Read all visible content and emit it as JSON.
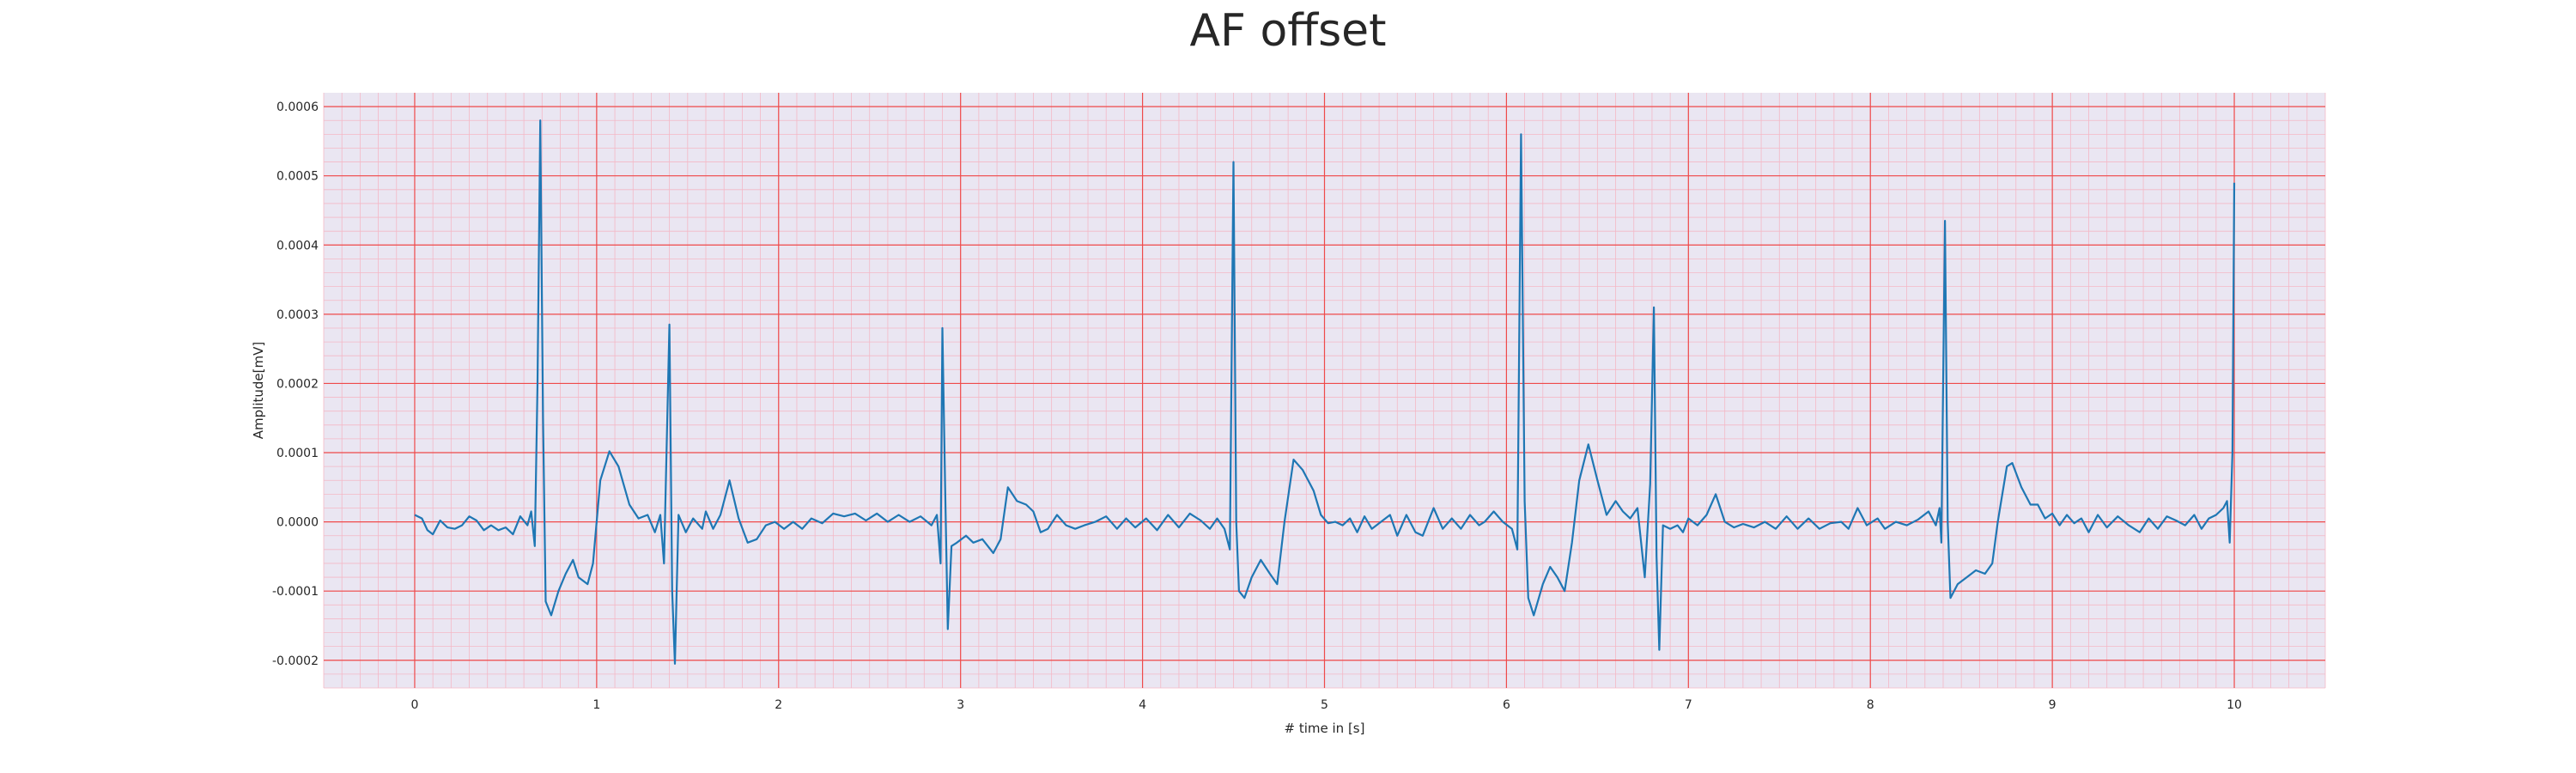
{
  "chart_data": {
    "type": "line",
    "title": "AF offset",
    "xlabel": "# time in [s]",
    "ylabel": "Amplitude[mV]",
    "xlim": [
      -0.5,
      10.5
    ],
    "ylim": [
      -0.00024,
      0.00062
    ],
    "x_ticks": [
      0,
      1,
      2,
      3,
      4,
      5,
      6,
      7,
      8,
      9,
      10
    ],
    "x_tick_labels": [
      "0",
      "1",
      "2",
      "3",
      "4",
      "5",
      "6",
      "7",
      "8",
      "9",
      "10"
    ],
    "y_ticks": [
      -0.0002,
      -0.0001,
      0.0,
      0.0001,
      0.0002,
      0.0003,
      0.0004,
      0.0005,
      0.0006
    ],
    "y_tick_labels": [
      "-0.0002",
      "-0.0001",
      "0.0000",
      "0.0001",
      "0.0002",
      "0.0003",
      "0.0004",
      "0.0005",
      "0.0006"
    ],
    "grid": true,
    "grid_style": "ecg paper (major red, minor pink)",
    "colors": {
      "line": "#1f77b4",
      "background": "#eae6f2",
      "major_grid": "#ef4a4a",
      "minor_grid": "#f4b8c6"
    },
    "series": [
      {
        "points": [
          [
            0.0,
            1e-05
          ],
          [
            0.04,
            5e-06
          ],
          [
            0.07,
            -1.2e-05
          ],
          [
            0.1,
            -1.8e-05
          ],
          [
            0.14,
            2e-06
          ],
          [
            0.18,
            -8e-06
          ],
          [
            0.22,
            -1e-05
          ],
          [
            0.26,
            -5e-06
          ],
          [
            0.3,
            8e-06
          ],
          [
            0.34,
            2e-06
          ],
          [
            0.38,
            -1.2e-05
          ],
          [
            0.42,
            -5e-06
          ],
          [
            0.46,
            -1.2e-05
          ],
          [
            0.5,
            -8e-06
          ],
          [
            0.54,
            -1.8e-05
          ],
          [
            0.58,
            8e-06
          ],
          [
            0.62,
            -5e-06
          ],
          [
            0.64,
            1.5e-05
          ],
          [
            0.66,
            -3.5e-05
          ],
          [
            0.675,
            0.0002
          ],
          [
            0.69,
            0.00058
          ],
          [
            0.705,
            0.00015
          ],
          [
            0.72,
            -0.000115
          ],
          [
            0.75,
            -0.000135
          ],
          [
            0.79,
            -0.0001
          ],
          [
            0.83,
            -7.5e-05
          ],
          [
            0.87,
            -5.5e-05
          ],
          [
            0.9,
            -8e-05
          ],
          [
            0.95,
            -9e-05
          ],
          [
            0.98,
            -6e-05
          ],
          [
            1.02,
            6e-05
          ],
          [
            1.07,
            0.000102
          ],
          [
            1.12,
            8e-05
          ],
          [
            1.18,
            2.5e-05
          ],
          [
            1.23,
            5e-06
          ],
          [
            1.28,
            1e-05
          ],
          [
            1.32,
            -1.5e-05
          ],
          [
            1.35,
            1e-05
          ],
          [
            1.37,
            -6e-05
          ],
          [
            1.4,
            0.000285
          ],
          [
            1.415,
            -0.0001
          ],
          [
            1.43,
            -0.000205
          ],
          [
            1.45,
            1e-05
          ],
          [
            1.49,
            -1.5e-05
          ],
          [
            1.53,
            5e-06
          ],
          [
            1.58,
            -1e-05
          ],
          [
            1.6,
            1.5e-05
          ],
          [
            1.64,
            -1e-05
          ],
          [
            1.68,
            1e-05
          ],
          [
            1.73,
            6e-05
          ],
          [
            1.78,
            5e-06
          ],
          [
            1.83,
            -3e-05
          ],
          [
            1.88,
            -2.5e-05
          ],
          [
            1.93,
            -5e-06
          ],
          [
            1.98,
            0.0
          ],
          [
            2.03,
            -1e-05
          ],
          [
            2.08,
            0.0
          ],
          [
            2.13,
            -1e-05
          ],
          [
            2.18,
            5e-06
          ],
          [
            2.24,
            -2e-06
          ],
          [
            2.3,
            1.2e-05
          ],
          [
            2.36,
            8e-06
          ],
          [
            2.42,
            1.2e-05
          ],
          [
            2.48,
            2e-06
          ],
          [
            2.54,
            1.2e-05
          ],
          [
            2.6,
            0.0
          ],
          [
            2.66,
            1e-05
          ],
          [
            2.72,
            0.0
          ],
          [
            2.78,
            8e-06
          ],
          [
            2.84,
            -5e-06
          ],
          [
            2.87,
            1e-05
          ],
          [
            2.89,
            -6e-05
          ],
          [
            2.9,
            0.00028
          ],
          [
            2.915,
            5e-05
          ],
          [
            2.93,
            -0.000155
          ],
          [
            2.95,
            -3.5e-05
          ],
          [
            2.98,
            -3e-05
          ],
          [
            3.03,
            -2e-05
          ],
          [
            3.07,
            -3e-05
          ],
          [
            3.12,
            -2.5e-05
          ],
          [
            3.18,
            -4.5e-05
          ],
          [
            3.22,
            -2.5e-05
          ],
          [
            3.26,
            5e-05
          ],
          [
            3.31,
            3e-05
          ],
          [
            3.36,
            2.5e-05
          ],
          [
            3.4,
            1.5e-05
          ],
          [
            3.44,
            -1.5e-05
          ],
          [
            3.48,
            -1e-05
          ],
          [
            3.53,
            1e-05
          ],
          [
            3.58,
            -5e-06
          ],
          [
            3.63,
            -1e-05
          ],
          [
            3.68,
            -5e-06
          ],
          [
            3.74,
            0.0
          ],
          [
            3.8,
            8e-06
          ],
          [
            3.86,
            -1e-05
          ],
          [
            3.91,
            5e-06
          ],
          [
            3.96,
            -8e-06
          ],
          [
            4.02,
            5e-06
          ],
          [
            4.08,
            -1.2e-05
          ],
          [
            4.14,
            1e-05
          ],
          [
            4.2,
            -8e-06
          ],
          [
            4.26,
            1.2e-05
          ],
          [
            4.32,
            2e-06
          ],
          [
            4.37,
            -1e-05
          ],
          [
            4.41,
            5e-06
          ],
          [
            4.45,
            -1e-05
          ],
          [
            4.48,
            -4e-05
          ],
          [
            4.5,
            0.00052
          ],
          [
            4.515,
            0.0
          ],
          [
            4.53,
            -0.0001
          ],
          [
            4.56,
            -0.00011
          ],
          [
            4.6,
            -8e-05
          ],
          [
            4.65,
            -5.5e-05
          ],
          [
            4.7,
            -7.5e-05
          ],
          [
            4.74,
            -9e-05
          ],
          [
            4.78,
            0.0
          ],
          [
            4.83,
            9e-05
          ],
          [
            4.88,
            7.5e-05
          ],
          [
            4.94,
            4.5e-05
          ],
          [
            4.98,
            1e-05
          ],
          [
            5.02,
            -2e-06
          ],
          [
            5.06,
            0.0
          ],
          [
            5.1,
            -5e-06
          ],
          [
            5.14,
            5e-06
          ],
          [
            5.18,
            -1.5e-05
          ],
          [
            5.22,
            8e-06
          ],
          [
            5.26,
            -1e-05
          ],
          [
            5.31,
            0.0
          ],
          [
            5.36,
            1e-05
          ],
          [
            5.4,
            -2e-05
          ],
          [
            5.45,
            1e-05
          ],
          [
            5.5,
            -1.5e-05
          ],
          [
            5.54,
            -2e-05
          ],
          [
            5.6,
            2e-05
          ],
          [
            5.65,
            -1e-05
          ],
          [
            5.7,
            5e-06
          ],
          [
            5.75,
            -1e-05
          ],
          [
            5.8,
            1e-05
          ],
          [
            5.85,
            -5e-06
          ],
          [
            5.88,
            0.0
          ],
          [
            5.93,
            1.5e-05
          ],
          [
            5.98,
            0.0
          ],
          [
            6.03,
            -1e-05
          ],
          [
            6.06,
            -4e-05
          ],
          [
            6.08,
            0.00056
          ],
          [
            6.1,
            3e-05
          ],
          [
            6.12,
            -0.00011
          ],
          [
            6.15,
            -0.000135
          ],
          [
            6.2,
            -9e-05
          ],
          [
            6.24,
            -6.5e-05
          ],
          [
            6.28,
            -8e-05
          ],
          [
            6.32,
            -0.0001
          ],
          [
            6.36,
            -3e-05
          ],
          [
            6.4,
            6e-05
          ],
          [
            6.45,
            0.000112
          ],
          [
            6.5,
            6e-05
          ],
          [
            6.55,
            1e-05
          ],
          [
            6.6,
            3e-05
          ],
          [
            6.64,
            1.5e-05
          ],
          [
            6.68,
            5e-06
          ],
          [
            6.72,
            2e-05
          ],
          [
            6.76,
            -8e-05
          ],
          [
            6.79,
            5.5e-05
          ],
          [
            6.81,
            0.00031
          ],
          [
            6.825,
            -5e-05
          ],
          [
            6.84,
            -0.000185
          ],
          [
            6.86,
            -5e-06
          ],
          [
            6.9,
            -1e-05
          ],
          [
            6.94,
            -5e-06
          ],
          [
            6.97,
            -1.5e-05
          ],
          [
            7.0,
            5e-06
          ],
          [
            7.05,
            -5e-06
          ],
          [
            7.1,
            1e-05
          ],
          [
            7.15,
            4e-05
          ],
          [
            7.2,
            0.0
          ],
          [
            7.25,
            -8e-06
          ],
          [
            7.3,
            -3e-06
          ],
          [
            7.36,
            -8e-06
          ],
          [
            7.42,
            0.0
          ],
          [
            7.48,
            -1e-05
          ],
          [
            7.54,
            8e-06
          ],
          [
            7.6,
            -1e-05
          ],
          [
            7.66,
            5e-06
          ],
          [
            7.72,
            -1e-05
          ],
          [
            7.78,
            -2e-06
          ],
          [
            7.84,
            0.0
          ],
          [
            7.88,
            -1e-05
          ],
          [
            7.93,
            2e-05
          ],
          [
            7.98,
            -5e-06
          ],
          [
            8.04,
            5e-06
          ],
          [
            8.08,
            -1e-05
          ],
          [
            8.14,
            0.0
          ],
          [
            8.2,
            -5e-06
          ],
          [
            8.26,
            3e-06
          ],
          [
            8.32,
            1.5e-05
          ],
          [
            8.36,
            -5e-06
          ],
          [
            8.38,
            2e-05
          ],
          [
            8.39,
            -3e-05
          ],
          [
            8.41,
            0.000435
          ],
          [
            8.425,
            0.0
          ],
          [
            8.44,
            -0.00011
          ],
          [
            8.48,
            -9e-05
          ],
          [
            8.53,
            -8e-05
          ],
          [
            8.58,
            -7e-05
          ],
          [
            8.63,
            -7.5e-05
          ],
          [
            8.67,
            -6e-05
          ],
          [
            8.7,
            0.0
          ],
          [
            8.75,
            8e-05
          ],
          [
            8.78,
            8.5e-05
          ],
          [
            8.83,
            5e-05
          ],
          [
            8.88,
            2.5e-05
          ],
          [
            8.92,
            2.5e-05
          ],
          [
            8.96,
            5e-06
          ],
          [
            9.0,
            1.2e-05
          ],
          [
            9.04,
            -5e-06
          ],
          [
            9.08,
            1e-05
          ],
          [
            9.12,
            -2e-06
          ],
          [
            9.16,
            5e-06
          ],
          [
            9.2,
            -1.5e-05
          ],
          [
            9.25,
            1e-05
          ],
          [
            9.3,
            -8e-06
          ],
          [
            9.36,
            8e-06
          ],
          [
            9.42,
            -5e-06
          ],
          [
            9.48,
            -1.5e-05
          ],
          [
            9.53,
            5e-06
          ],
          [
            9.58,
            -1e-05
          ],
          [
            9.63,
            8e-06
          ],
          [
            9.68,
            2e-06
          ],
          [
            9.73,
            -5e-06
          ],
          [
            9.78,
            1e-05
          ],
          [
            9.82,
            -1e-05
          ],
          [
            9.86,
            5e-06
          ],
          [
            9.9,
            1e-05
          ],
          [
            9.94,
            2e-05
          ],
          [
            9.96,
            3e-05
          ],
          [
            9.975,
            -3e-05
          ],
          [
            9.99,
            0.0001
          ],
          [
            10.0,
            0.00049
          ]
        ]
      }
    ]
  }
}
